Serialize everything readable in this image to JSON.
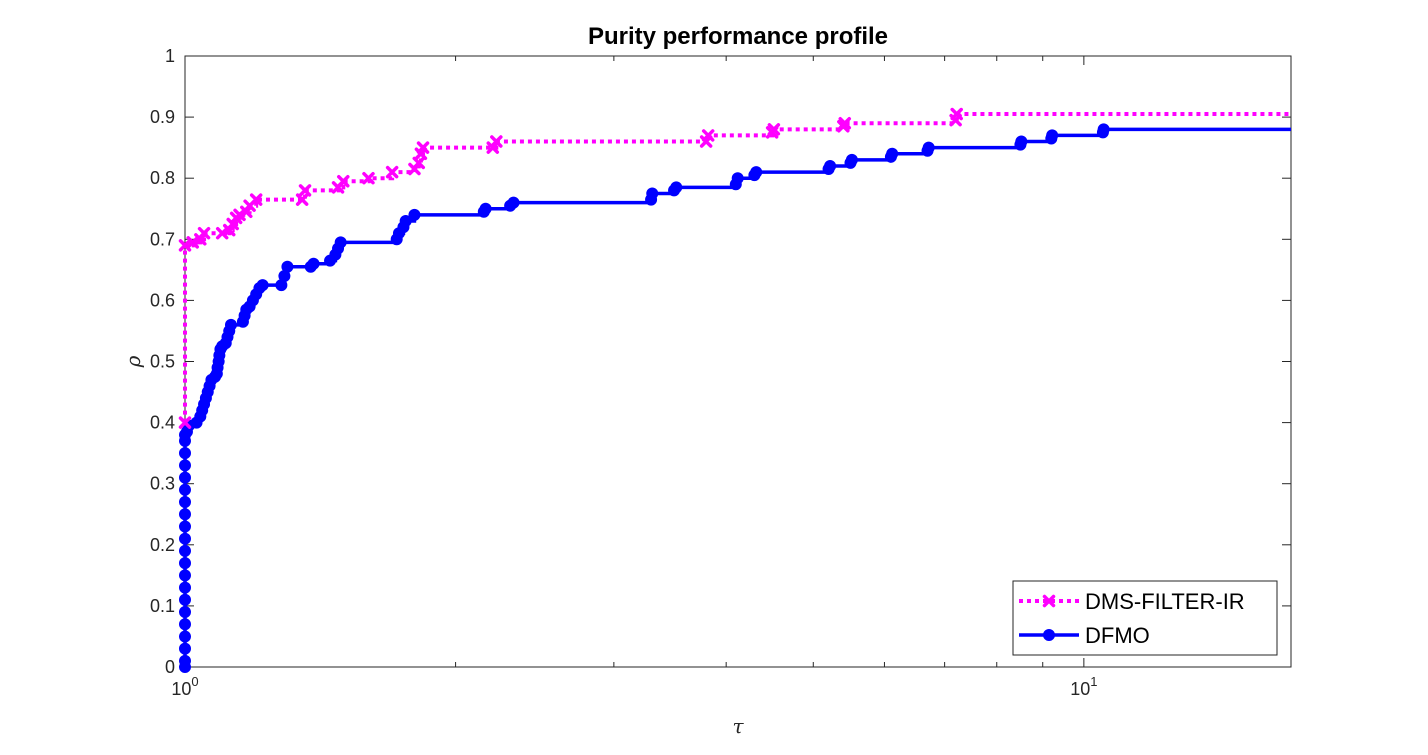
{
  "chart_data": {
    "type": "line",
    "title": "Purity performance profile",
    "xlabel": "τ",
    "ylabel": "ρ",
    "xscale": "log",
    "xlim": [
      1,
      17
    ],
    "ylim": [
      0,
      1
    ],
    "yticks": [
      {
        "value": 0,
        "label": "0"
      },
      {
        "value": 0.1,
        "label": "0.1"
      },
      {
        "value": 0.2,
        "label": "0.2"
      },
      {
        "value": 0.3,
        "label": "0.3"
      },
      {
        "value": 0.4,
        "label": "0.4"
      },
      {
        "value": 0.5,
        "label": "0.5"
      },
      {
        "value": 0.6,
        "label": "0.6"
      },
      {
        "value": 0.7,
        "label": "0.7"
      },
      {
        "value": 0.8,
        "label": "0.8"
      },
      {
        "value": 0.9,
        "label": "0.9"
      },
      {
        "value": 1,
        "label": "1"
      }
    ],
    "xticks": [
      {
        "value": 1,
        "base": "10",
        "exp": "0"
      },
      {
        "value": 10,
        "base": "10",
        "exp": "1"
      }
    ],
    "legend_position": "bottom-right",
    "grid": false,
    "series": [
      {
        "name": "DMS-FILTER-IR",
        "color": "#ff00ff",
        "line_style": "dotted",
        "marker": "x",
        "points": [
          [
            1.0,
            0.4
          ],
          [
            1.0,
            0.69
          ],
          [
            1.02,
            0.695
          ],
          [
            1.04,
            0.7
          ],
          [
            1.05,
            0.71
          ],
          [
            1.1,
            0.71
          ],
          [
            1.12,
            0.715
          ],
          [
            1.13,
            0.725
          ],
          [
            1.14,
            0.735
          ],
          [
            1.15,
            0.74
          ],
          [
            1.17,
            0.745
          ],
          [
            1.18,
            0.755
          ],
          [
            1.2,
            0.765
          ],
          [
            1.35,
            0.765
          ],
          [
            1.36,
            0.78
          ],
          [
            1.48,
            0.785
          ],
          [
            1.5,
            0.795
          ],
          [
            1.6,
            0.8
          ],
          [
            1.7,
            0.81
          ],
          [
            1.8,
            0.815
          ],
          [
            1.82,
            0.825
          ],
          [
            1.83,
            0.84
          ],
          [
            1.84,
            0.85
          ],
          [
            2.2,
            0.85
          ],
          [
            2.22,
            0.86
          ],
          [
            3.8,
            0.86
          ],
          [
            3.82,
            0.87
          ],
          [
            4.5,
            0.875
          ],
          [
            4.52,
            0.88
          ],
          [
            5.4,
            0.885
          ],
          [
            5.42,
            0.89
          ],
          [
            7.2,
            0.895
          ],
          [
            7.22,
            0.905
          ],
          [
            17.0,
            0.905
          ]
        ]
      },
      {
        "name": "DFMO",
        "color": "#0000ff",
        "line_style": "solid",
        "marker": "o",
        "points": [
          [
            1.0,
            0.0
          ],
          [
            1.0,
            0.01
          ],
          [
            1.0,
            0.03
          ],
          [
            1.0,
            0.05
          ],
          [
            1.0,
            0.07
          ],
          [
            1.0,
            0.09
          ],
          [
            1.0,
            0.11
          ],
          [
            1.0,
            0.13
          ],
          [
            1.0,
            0.15
          ],
          [
            1.0,
            0.17
          ],
          [
            1.0,
            0.19
          ],
          [
            1.0,
            0.21
          ],
          [
            1.0,
            0.23
          ],
          [
            1.0,
            0.25
          ],
          [
            1.0,
            0.27
          ],
          [
            1.0,
            0.29
          ],
          [
            1.0,
            0.31
          ],
          [
            1.0,
            0.33
          ],
          [
            1.0,
            0.35
          ],
          [
            1.0,
            0.37
          ],
          [
            1.0,
            0.38
          ],
          [
            1.005,
            0.385
          ],
          [
            1.01,
            0.395
          ],
          [
            1.03,
            0.4
          ],
          [
            1.04,
            0.41
          ],
          [
            1.045,
            0.42
          ],
          [
            1.05,
            0.43
          ],
          [
            1.055,
            0.44
          ],
          [
            1.06,
            0.45
          ],
          [
            1.065,
            0.46
          ],
          [
            1.07,
            0.47
          ],
          [
            1.08,
            0.475
          ],
          [
            1.085,
            0.48
          ],
          [
            1.087,
            0.49
          ],
          [
            1.09,
            0.5
          ],
          [
            1.092,
            0.51
          ],
          [
            1.095,
            0.52
          ],
          [
            1.1,
            0.525
          ],
          [
            1.11,
            0.53
          ],
          [
            1.115,
            0.54
          ],
          [
            1.12,
            0.55
          ],
          [
            1.125,
            0.56
          ],
          [
            1.16,
            0.565
          ],
          [
            1.165,
            0.575
          ],
          [
            1.17,
            0.585
          ],
          [
            1.18,
            0.59
          ],
          [
            1.19,
            0.6
          ],
          [
            1.2,
            0.61
          ],
          [
            1.21,
            0.62
          ],
          [
            1.22,
            0.625
          ],
          [
            1.28,
            0.625
          ],
          [
            1.29,
            0.64
          ],
          [
            1.3,
            0.655
          ],
          [
            1.38,
            0.655
          ],
          [
            1.39,
            0.66
          ],
          [
            1.45,
            0.665
          ],
          [
            1.47,
            0.675
          ],
          [
            1.48,
            0.685
          ],
          [
            1.49,
            0.695
          ],
          [
            1.72,
            0.7
          ],
          [
            1.73,
            0.71
          ],
          [
            1.75,
            0.72
          ],
          [
            1.76,
            0.73
          ],
          [
            1.8,
            0.74
          ],
          [
            2.15,
            0.745
          ],
          [
            2.16,
            0.75
          ],
          [
            2.3,
            0.755
          ],
          [
            2.32,
            0.76
          ],
          [
            3.3,
            0.765
          ],
          [
            3.31,
            0.775
          ],
          [
            3.5,
            0.78
          ],
          [
            3.52,
            0.785
          ],
          [
            4.1,
            0.79
          ],
          [
            4.12,
            0.8
          ],
          [
            4.3,
            0.805
          ],
          [
            4.32,
            0.81
          ],
          [
            5.2,
            0.815
          ],
          [
            5.22,
            0.82
          ],
          [
            5.5,
            0.825
          ],
          [
            5.52,
            0.83
          ],
          [
            6.1,
            0.835
          ],
          [
            6.12,
            0.84
          ],
          [
            6.7,
            0.845
          ],
          [
            6.72,
            0.85
          ],
          [
            8.5,
            0.855
          ],
          [
            8.52,
            0.86
          ],
          [
            9.2,
            0.865
          ],
          [
            9.22,
            0.87
          ],
          [
            10.5,
            0.875
          ],
          [
            10.52,
            0.88
          ],
          [
            17.0,
            0.88
          ]
        ]
      }
    ]
  }
}
